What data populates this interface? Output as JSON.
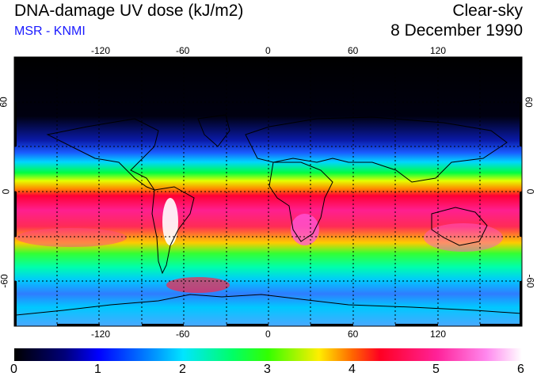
{
  "header": {
    "title": "DNA-damage UV dose (kJ/m2)",
    "subtitle": "MSR - KNMI",
    "condition": "Clear-sky",
    "date": "8 December 1990"
  },
  "map": {
    "projection": "equirectangular",
    "lon_ticks": [
      "-120",
      "-60",
      "0",
      "60",
      "120"
    ],
    "lat_ticks_left": [
      "60",
      "0",
      "-60"
    ],
    "lat_ticks_right": [
      "60",
      "0",
      "-60"
    ],
    "graticule_spacing_deg": 30,
    "lon_range": [
      -180,
      180
    ],
    "lat_range": [
      -90,
      90
    ]
  },
  "colorbar": {
    "labels": [
      "0",
      "1",
      "2",
      "3",
      "4",
      "5",
      "6"
    ],
    "min": 0,
    "max": 6,
    "unit": "kJ/m2",
    "colors": [
      "#000000",
      "#0000ff",
      "#00e5ff",
      "#00ff33",
      "#ffe600",
      "#ff0033",
      "#ff33cc",
      "#ffffff"
    ]
  }
}
